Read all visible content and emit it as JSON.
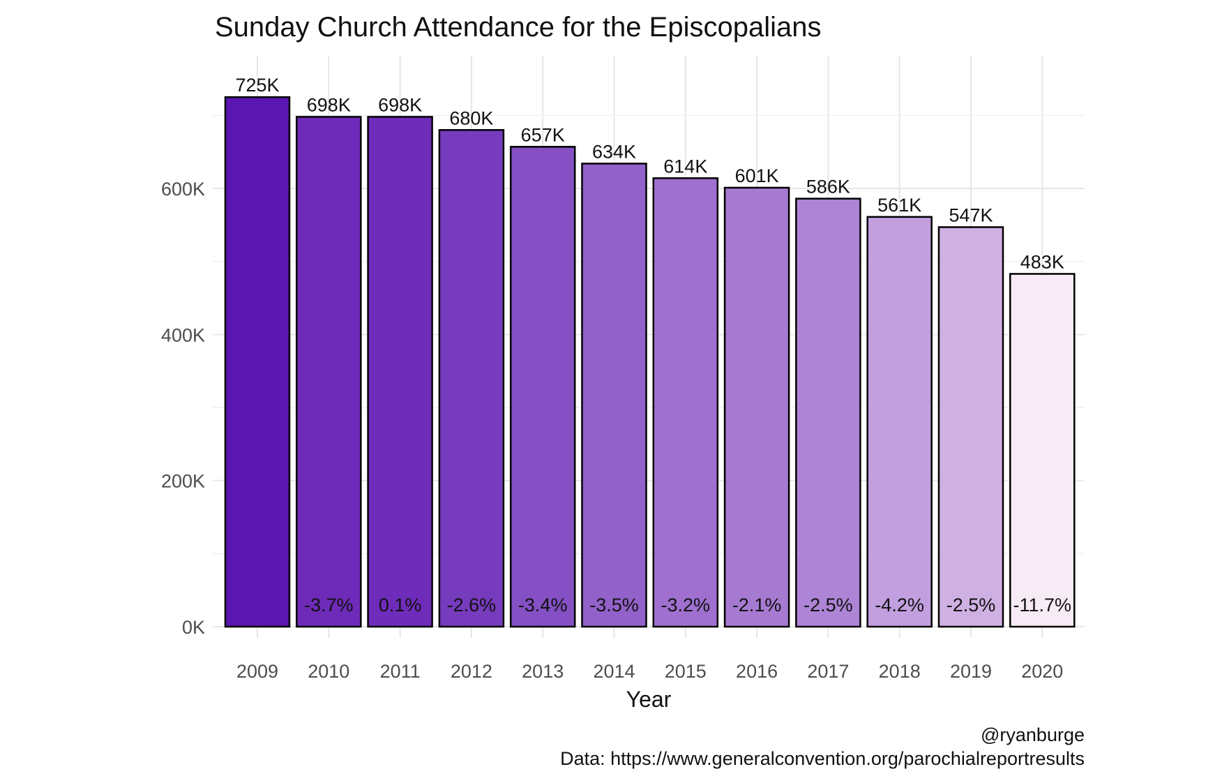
{
  "chart_data": {
    "type": "bar",
    "title": "Sunday Church Attendance for the Episcopalians",
    "xlabel": "Year",
    "ylabel": "",
    "categories": [
      "2009",
      "2010",
      "2011",
      "2012",
      "2013",
      "2014",
      "2015",
      "2016",
      "2017",
      "2018",
      "2019",
      "2020"
    ],
    "values": [
      725,
      698,
      698,
      680,
      657,
      634,
      614,
      601,
      586,
      561,
      547,
      483
    ],
    "value_unit": "thousands",
    "value_labels": [
      "725K",
      "698K",
      "698K",
      "680K",
      "657K",
      "634K",
      "614K",
      "601K",
      "586K",
      "561K",
      "547K",
      "483K"
    ],
    "pct_change_labels": [
      "",
      "-3.7%",
      "0.1%",
      "-2.6%",
      "-3.4%",
      "-3.5%",
      "-3.2%",
      "-2.1%",
      "-2.5%",
      "-4.2%",
      "-2.5%",
      "-11.7%"
    ],
    "bar_colors": [
      "#5b15b0",
      "#6e2bb9",
      "#6f2cba",
      "#773bbd",
      "#8450c4",
      "#9261c9",
      "#9f70cf",
      "#a77ad2",
      "#ae84d6",
      "#c29fdf",
      "#cfb0e3",
      "#f7ebf6"
    ],
    "ylim": [
      0,
      760
    ],
    "yticks": [
      0,
      200,
      400,
      600
    ],
    "ytick_labels": [
      "0K",
      "200K",
      "400K",
      "600K"
    ],
    "grid": true,
    "legend": "none"
  },
  "caption": {
    "handle": "@ryanburge",
    "source": "Data: https://www.generalconvention.org/parochialreportresults"
  }
}
